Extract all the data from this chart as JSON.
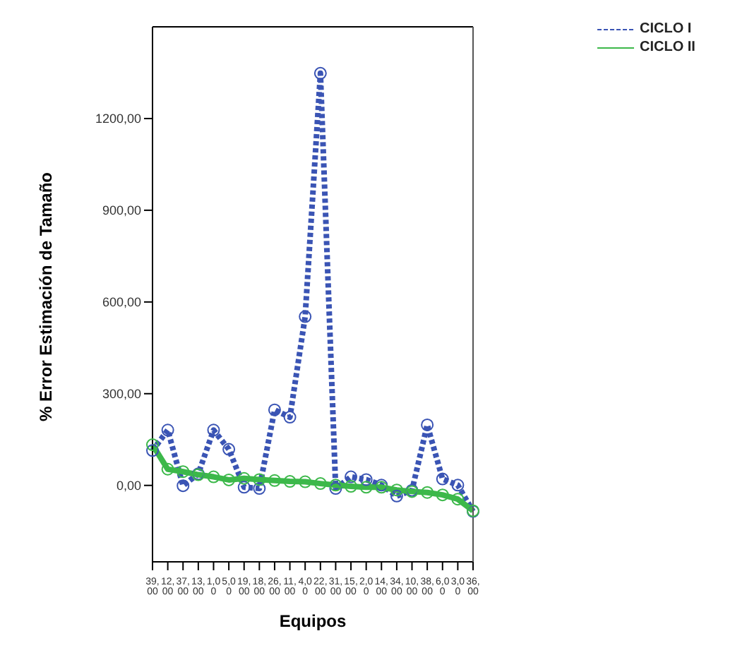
{
  "chart_data": {
    "type": "line",
    "xlabel": "Equipos",
    "ylabel": "% Error Estimación de Tamaño",
    "categories": [
      "39,00",
      "12,00",
      "37,00",
      "13,00",
      "1,00",
      "5,00",
      "19,00",
      "18,00",
      "26,00",
      "11,00",
      "4,00",
      "22,00",
      "31,00",
      "15,00",
      "2,00",
      "14,00",
      "34,00",
      "10,00",
      "38,00",
      "6,00",
      "3,00",
      "36,00"
    ],
    "series": [
      {
        "name": "CICLO I",
        "color": "#3a54b4",
        "line_style": "dotted",
        "values": [
          114,
          181,
          -1,
          38,
          181,
          118,
          -6,
          -10,
          247,
          223,
          552,
          1348,
          -10,
          28,
          19,
          1,
          -35,
          -16,
          198,
          21,
          1,
          -85
        ]
      },
      {
        "name": "CICLO II",
        "color": "#3cb84a",
        "line_style": "solid",
        "values": [
          133,
          53,
          45,
          35,
          28,
          18,
          23,
          19,
          16,
          13,
          12,
          6,
          1,
          -3,
          -6,
          -6,
          -15,
          -20,
          -23,
          -31,
          -45,
          -83
        ]
      }
    ],
    "ylim": [
      -250,
      1500
    ],
    "yticks": [
      {
        "value": 0,
        "label": "0,00"
      },
      {
        "value": 300,
        "label": "300,00"
      },
      {
        "value": 600,
        "label": "600,00"
      },
      {
        "value": 900,
        "label": "900,00"
      },
      {
        "value": 1200,
        "label": "1200,00"
      }
    ],
    "grid": false,
    "legend": "top right",
    "marker": "circle"
  }
}
